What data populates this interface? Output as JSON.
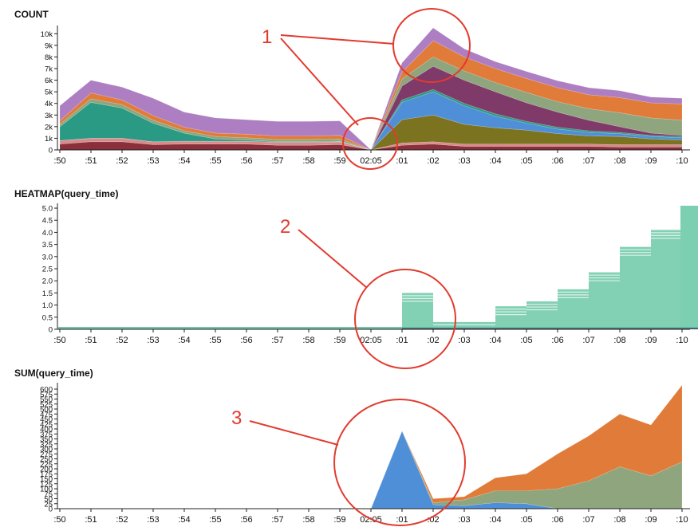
{
  "x_ticks": [
    ":50",
    ":51",
    ":52",
    ":53",
    ":54",
    ":55",
    ":56",
    ":57",
    ":58",
    ":59",
    "02:05",
    ":01",
    ":02",
    ":03",
    ":04",
    ":05",
    ":06",
    ":07",
    ":08",
    ":09",
    ":10"
  ],
  "colors": {
    "purple": "#ad7fc2",
    "orange": "#e07b39",
    "sage": "#8ea57d",
    "plum": "#7f3a69",
    "teal": "#2a9a84",
    "blue": "#4f8fd8",
    "olive": "#7c7321",
    "maroon": "#8a2f3c",
    "pink": "#d98a8a",
    "heat": "#7ccfb0",
    "heatDark": "#5dbb9a",
    "annotation": "#e23b2e"
  },
  "annotations": {
    "label_1": "1",
    "label_2": "2",
    "label_3": "3"
  },
  "chart_data": [
    {
      "type": "area",
      "title": "COUNT",
      "stacked": true,
      "x": [
        ":50",
        ":51",
        ":52",
        ":53",
        ":54",
        ":55",
        ":56",
        ":57",
        ":58",
        ":59",
        "02:05",
        ":01",
        ":02",
        ":03",
        ":04",
        ":05",
        ":06",
        ":07",
        ":08",
        ":09",
        ":10"
      ],
      "ylim": [
        0,
        10500
      ],
      "y_ticks": [
        "0",
        "1k",
        "2k",
        "3k",
        "4k",
        "5k",
        "6k",
        "7k",
        "8k",
        "9k",
        "10k"
      ],
      "series": [
        {
          "name": "maroon",
          "color": "maroon",
          "values": [
            500,
            700,
            700,
            450,
            500,
            500,
            500,
            400,
            400,
            450,
            0,
            400,
            500,
            300,
            300,
            300,
            300,
            300,
            250,
            250,
            250
          ]
        },
        {
          "name": "pink",
          "color": "pink",
          "values": [
            300,
            300,
            300,
            250,
            250,
            250,
            250,
            250,
            250,
            250,
            0,
            200,
            200,
            200,
            200,
            200,
            200,
            200,
            200,
            200,
            200
          ]
        },
        {
          "name": "olive",
          "color": "olive",
          "values": [
            0,
            0,
            0,
            0,
            0,
            0,
            0,
            0,
            0,
            0,
            0,
            2000,
            2300,
            1700,
            1400,
            1200,
            900,
            700,
            700,
            500,
            400
          ]
        },
        {
          "name": "blue",
          "color": "blue",
          "values": [
            0,
            0,
            0,
            0,
            0,
            0,
            0,
            0,
            0,
            0,
            0,
            1500,
            2000,
            1600,
            1000,
            600,
            400,
            300,
            250,
            200,
            200
          ]
        },
        {
          "name": "teal",
          "color": "teal",
          "values": [
            1200,
            3100,
            2600,
            1600,
            700,
            200,
            100,
            50,
            50,
            50,
            0,
            200,
            200,
            200,
            200,
            150,
            150,
            150,
            100,
            100,
            100
          ]
        },
        {
          "name": "plum",
          "color": "plum",
          "values": [
            0,
            0,
            0,
            0,
            0,
            0,
            0,
            0,
            0,
            0,
            0,
            1200,
            2000,
            2000,
            1900,
            1600,
            1300,
            900,
            500,
            200,
            100
          ]
        },
        {
          "name": "sage",
          "color": "sage",
          "values": [
            200,
            300,
            300,
            250,
            200,
            200,
            200,
            200,
            200,
            200,
            0,
            600,
            800,
            800,
            800,
            900,
            900,
            1000,
            1200,
            1300,
            1300
          ]
        },
        {
          "name": "orange",
          "color": "orange",
          "values": [
            300,
            500,
            400,
            400,
            300,
            300,
            300,
            300,
            300,
            300,
            0,
            600,
            1400,
            1200,
            1200,
            1200,
            1200,
            1200,
            1300,
            1300,
            1400
          ]
        },
        {
          "name": "purple",
          "color": "purple",
          "values": [
            1300,
            1100,
            1100,
            1500,
            1300,
            1300,
            1250,
            1250,
            1250,
            1250,
            0,
            800,
            1100,
            700,
            600,
            600,
            600,
            600,
            600,
            500,
            500
          ]
        }
      ]
    },
    {
      "type": "heatmap",
      "title": "HEATMAP(query_time)",
      "x": [
        ":50",
        ":51",
        ":52",
        ":53",
        ":54",
        ":55",
        ":56",
        ":57",
        ":58",
        ":59",
        "02:05",
        ":01",
        ":02",
        ":03",
        ":04",
        ":05",
        ":06",
        ":07",
        ":08",
        ":09",
        ":10"
      ],
      "ylim": [
        0,
        5.1
      ],
      "y_ticks": [
        "0",
        "0.5",
        "1.0",
        "1.5",
        "2.0",
        "2.5",
        "3.0",
        "3.5",
        "4.0",
        "4.5",
        "5.0"
      ],
      "column_max": [
        0.1,
        0.1,
        0.1,
        0.1,
        0.1,
        0.1,
        0.1,
        0.1,
        0.1,
        0.1,
        0.05,
        1.5,
        0.3,
        0.3,
        0.95,
        1.15,
        1.65,
        2.35,
        3.4,
        4.1,
        5.1
      ]
    },
    {
      "type": "area",
      "title": "SUM(query_time)",
      "stacked": true,
      "x": [
        ":50",
        ":51",
        ":52",
        ":53",
        ":54",
        ":55",
        ":56",
        ":57",
        ":58",
        ":59",
        "02:05",
        ":01",
        ":02",
        ":03",
        ":04",
        ":05",
        ":06",
        ":07",
        ":08",
        ":09",
        ":10"
      ],
      "ylim": [
        0,
        620
      ],
      "y_ticks": [
        "0",
        "25",
        "50",
        "75",
        "100",
        "125",
        "150",
        "175",
        "200",
        "225",
        "250",
        "275",
        "300",
        "325",
        "350",
        "375",
        "400",
        "425",
        "450",
        "475",
        "500",
        "525",
        "550",
        "575",
        "600"
      ],
      "series": [
        {
          "name": "blue",
          "color": "blue",
          "values": [
            0,
            0,
            0,
            0,
            0,
            0,
            0,
            0,
            0,
            0,
            0,
            390,
            20,
            15,
            30,
            25,
            0,
            0,
            0,
            0,
            0
          ]
        },
        {
          "name": "sage",
          "color": "sage",
          "values": [
            0,
            0,
            0,
            0,
            0,
            0,
            0,
            0,
            0,
            0,
            0,
            0,
            10,
            30,
            60,
            65,
            100,
            140,
            210,
            165,
            235
          ]
        },
        {
          "name": "orange",
          "color": "orange",
          "values": [
            0,
            0,
            0,
            0,
            0,
            0,
            0,
            0,
            0,
            0,
            0,
            0,
            20,
            15,
            65,
            85,
            175,
            225,
            265,
            255,
            385
          ]
        }
      ]
    }
  ]
}
